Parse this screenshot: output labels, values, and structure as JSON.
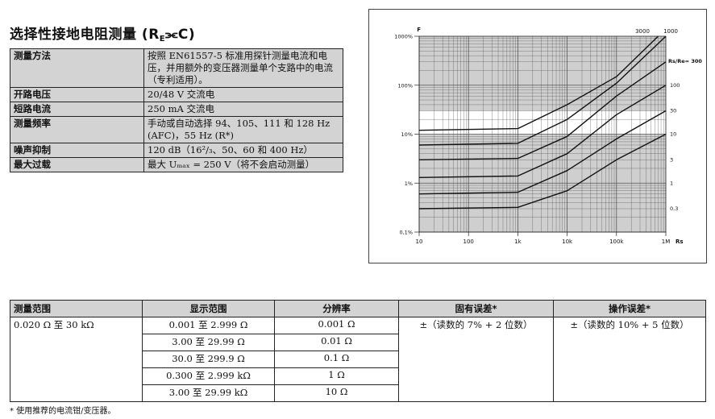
{
  "title": {
    "prefix": "选择性接地电阻测量 (R",
    "sub": "E",
    "symbol": "⫘C)"
  },
  "spec_table": [
    {
      "key": "测量方法",
      "value": "按照 EN61557-5 标准用探针测量电流和电压，并用额外的变压器测量单个支路中的电流（专利适用）。"
    },
    {
      "key": "开路电压",
      "value": "20/48 V 交流电"
    },
    {
      "key": "短路电流",
      "value": "250 mA 交流电"
    },
    {
      "key": "测量频率",
      "value": "手动或自动选择 94、105、111 和 128 Hz (AFC)，55 Hz (R*)"
    },
    {
      "key": "噪声抑制",
      "value": "120 dB（16²/₃、50、60 和 400 Hz）"
    },
    {
      "key": "最大过载",
      "value": "最大 Uₘₐₓ = 250 V（将不会启动测量）"
    }
  ],
  "chart_data": {
    "type": "line",
    "ylabel": "F",
    "xlabel": "Rs",
    "x_scale": "log",
    "y_scale": "log",
    "xlim": [
      10,
      1000000
    ],
    "ylim": [
      0.1,
      1000
    ],
    "x_ticks": [
      "10",
      "100",
      "1k",
      "10k",
      "100k",
      "1M"
    ],
    "y_ticks": [
      "1000%",
      "100%",
      "10%",
      "1%",
      "0,1%"
    ],
    "legend_title": "Rs/Re= 300",
    "series": [
      {
        "name": "3000",
        "x": [
          10,
          1000,
          10000,
          100000,
          700000
        ],
        "y": [
          12,
          13,
          40,
          150,
          1000
        ]
      },
      {
        "name": "1000",
        "x": [
          10,
          1000,
          10000,
          100000,
          1000000
        ],
        "y": [
          6,
          6.5,
          20,
          110,
          1000
        ]
      },
      {
        "name": "300",
        "x": [
          10,
          1000,
          10000,
          100000,
          1000000
        ],
        "y": [
          3,
          3.2,
          9,
          60,
          300
        ]
      },
      {
        "name": "100",
        "x": [
          10,
          1000,
          10000,
          100000,
          1000000
        ],
        "y": [
          1.3,
          1.4,
          4,
          25,
          100
        ]
      },
      {
        "name": "30",
        "x": [
          10,
          1000,
          10000,
          100000,
          1000000
        ],
        "y": [
          0.6,
          0.65,
          1.8,
          8,
          30
        ]
      },
      {
        "name": "10",
        "x": [
          10,
          1000,
          10000,
          100000,
          1000000
        ],
        "y": [
          0.3,
          0.32,
          0.7,
          3,
          10
        ]
      }
    ],
    "right_labels": [
      "3",
      "1",
      "0,3"
    ]
  },
  "range_table": {
    "headers": [
      "测量范围",
      "显示范围",
      "分辨率",
      "固有误差*",
      "操作误差*"
    ],
    "measure_range": "0.020 Ω 至 30 kΩ",
    "rows": [
      {
        "display": "0.001 至 2.999 Ω",
        "res": "0.001 Ω"
      },
      {
        "display": "3.00 至 29.99 Ω",
        "res": "0.01 Ω"
      },
      {
        "display": "30.0 至 299.9 Ω",
        "res": "0.1 Ω"
      },
      {
        "display": "0.300 至 2.999 kΩ",
        "res": "1 Ω"
      },
      {
        "display": "3.00 至 29.99 kΩ",
        "res": "10 Ω"
      }
    ],
    "intrinsic": "±（读数的 7% + 2 位数）",
    "operating": "±（读数的 10% + 5 位数）"
  },
  "footnote": "* 使用推荐的电流钳/变压器。"
}
